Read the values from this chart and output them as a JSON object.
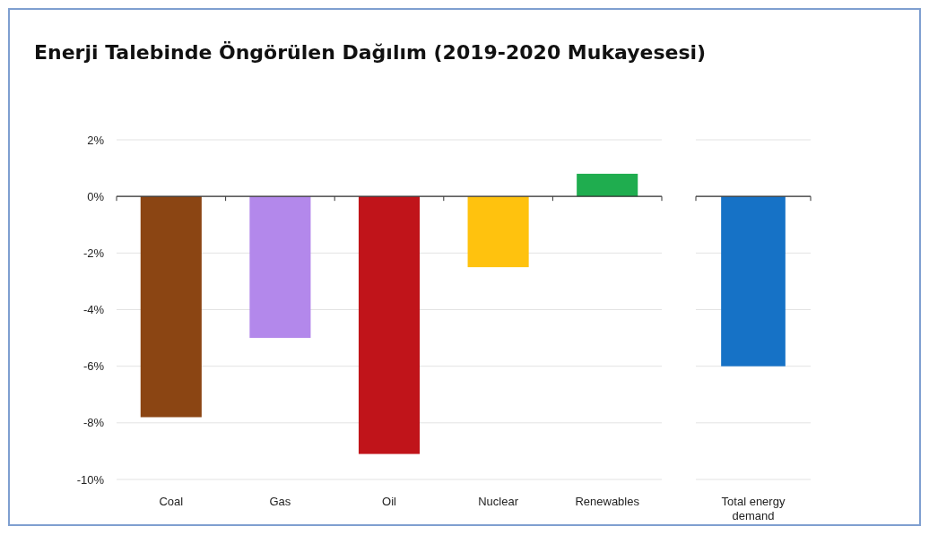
{
  "chart_data": [
    {
      "type": "bar",
      "title": "Enerji Talebinde Öngörülen Dağılım  (2019-2020 Mukayesesi)",
      "categories": [
        "Coal",
        "Gas",
        "Oil",
        "Nuclear",
        "Renewables"
      ],
      "values": [
        -7.8,
        -5.0,
        -9.1,
        -2.5,
        0.8
      ],
      "colors": [
        "#8b4513",
        "#b388eb",
        "#c0141a",
        "#ffc20e",
        "#1fad4f"
      ],
      "ylim": [
        -10,
        2
      ],
      "yticks": [
        {
          "value": 2,
          "label": "2%"
        },
        {
          "value": 0,
          "label": "0%"
        },
        {
          "value": -2,
          "label": "-2%"
        },
        {
          "value": -4,
          "label": "-4%"
        },
        {
          "value": -6,
          "label": "-6%"
        },
        {
          "value": -8,
          "label": "-8%"
        },
        {
          "value": -10,
          "label": "-10%"
        }
      ],
      "grid": "y"
    },
    {
      "type": "bar",
      "categories": [
        "Total energy demand"
      ],
      "values": [
        -6.0
      ],
      "colors": [
        "#1672c6"
      ],
      "ylim": [
        -10,
        2
      ],
      "yticks": [
        {
          "value": 2,
          "label": null
        },
        {
          "value": 0,
          "label": null
        },
        {
          "value": -2,
          "label": null
        },
        {
          "value": -4,
          "label": null
        },
        {
          "value": -6,
          "label": null
        },
        {
          "value": -8,
          "label": null
        },
        {
          "value": -10,
          "label": null
        }
      ],
      "grid": "y",
      "tick_labels": "x"
    }
  ]
}
